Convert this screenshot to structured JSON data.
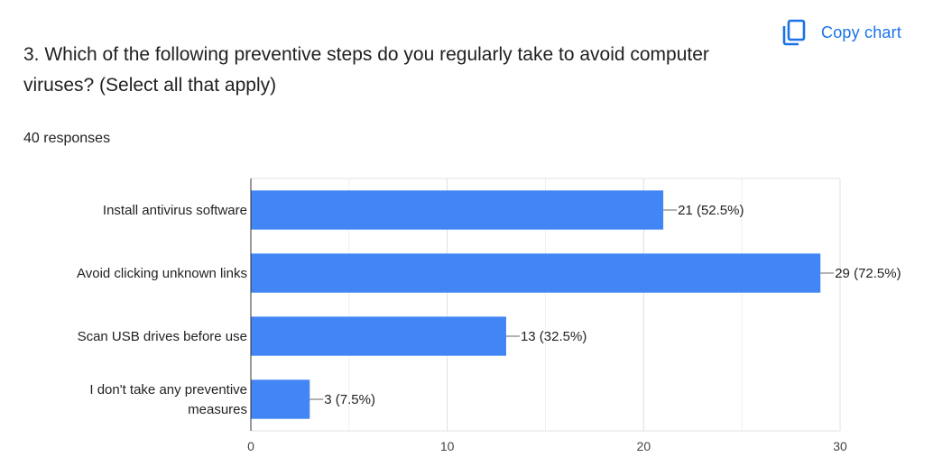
{
  "copy_button": {
    "label": "Copy chart",
    "icon": "copy-icon",
    "color": "#1a73e8"
  },
  "question": {
    "title": "3. Which of the following preventive steps do you regularly take to avoid computer viruses? (Select all that apply)"
  },
  "responses": {
    "count_label": "40 responses"
  },
  "chart_data": {
    "type": "bar",
    "orientation": "horizontal",
    "categories": [
      "Install antivirus software",
      "Avoid clicking unknown links",
      "Scan USB drives before use",
      "I don't take any preventive measures"
    ],
    "category_lines": [
      [
        "Install antivirus software"
      ],
      [
        "Avoid clicking unknown links"
      ],
      [
        "Scan USB drives before use"
      ],
      [
        "I don't take any preventive",
        "measures"
      ]
    ],
    "values": [
      21,
      29,
      13,
      3
    ],
    "data_labels": [
      "21 (52.5%)",
      "29 (72.5%)",
      "13 (32.5%)",
      "3 (7.5%)"
    ],
    "xticks": [
      0,
      10,
      20,
      30
    ],
    "xlim": [
      0,
      30
    ],
    "grid": true,
    "bar_color": "#4285f4",
    "title": "",
    "xlabel": "",
    "ylabel": ""
  }
}
